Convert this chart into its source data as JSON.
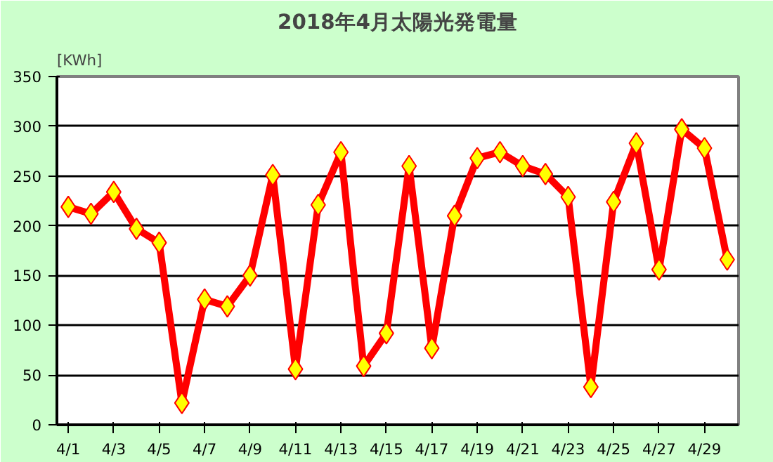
{
  "chart_data": {
    "type": "line",
    "title": "2018年4月太陽光発電量",
    "ylabel": "[KWh]",
    "categories": [
      "4/1",
      null,
      "4/3",
      null,
      "4/5",
      null,
      "4/7",
      null,
      "4/9",
      null,
      "4/11",
      null,
      "4/13",
      null,
      "4/15",
      null,
      "4/17",
      null,
      "4/19",
      null,
      "4/21",
      null,
      "4/23",
      null,
      "4/25",
      null,
      "4/27",
      null,
      "4/29",
      null
    ],
    "series": [
      {
        "color": "#ff0000",
        "values": [
          219,
          212,
          234,
          197,
          183,
          22,
          126,
          119,
          150,
          251,
          56,
          221,
          274,
          59,
          92,
          260,
          77,
          210,
          268,
          274,
          260,
          252,
          229,
          38,
          224,
          283,
          156,
          297,
          278,
          166
        ]
      }
    ],
    "marker": "diamond",
    "ylim": [
      0,
      350
    ],
    "yticks": [
      0,
      50,
      100,
      150,
      200,
      250,
      300,
      350
    ],
    "grid": "y"
  }
}
